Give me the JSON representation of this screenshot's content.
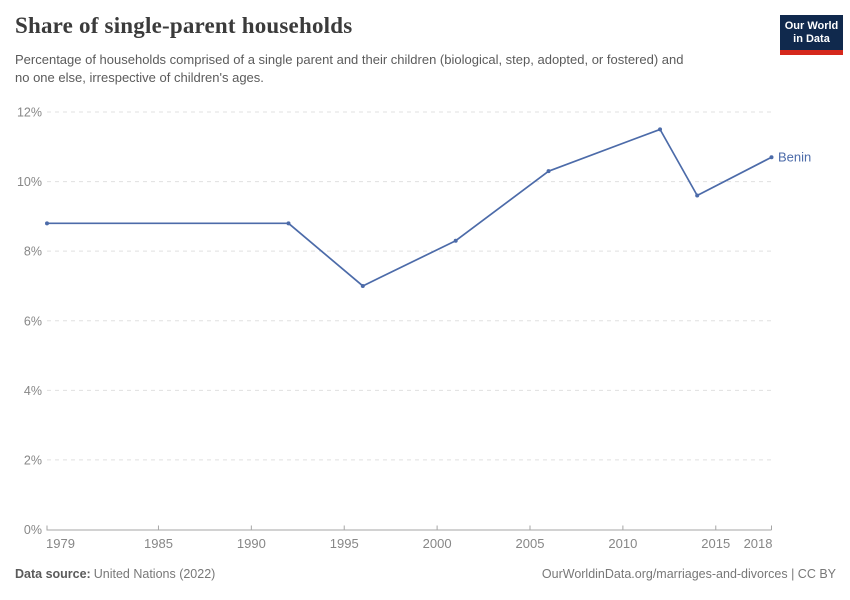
{
  "header": {
    "title": "Share of single-parent households",
    "subtitle": "Percentage of households comprised of a single parent and their children (biological, step, adopted, or fostered) and no one else, irrespective of children's ages.",
    "logo": {
      "line1": "Our World",
      "line2": "in Data"
    }
  },
  "chart_data": {
    "type": "line",
    "title": "Share of single-parent households",
    "series": [
      {
        "name": "Benin",
        "end_label": "Benin",
        "color": "#4c6ba9",
        "x": [
          1979,
          1992,
          1996,
          2001,
          2006,
          2012,
          2014,
          2018
        ],
        "values": [
          8.8,
          8.8,
          7.0,
          8.3,
          10.3,
          11.5,
          9.6,
          10.7
        ]
      }
    ],
    "xlabel": "",
    "ylabel": "",
    "xlim": [
      1979,
      2018
    ],
    "ylim": [
      0,
      12
    ],
    "x_ticks": [
      1979,
      1985,
      1990,
      1995,
      2000,
      2005,
      2010,
      2015,
      2018
    ],
    "x_tick_labels": [
      "1979",
      "1985",
      "1990",
      "1995",
      "2000",
      "2005",
      "2010",
      "2015",
      "2018"
    ],
    "y_ticks": [
      0,
      2,
      4,
      6,
      8,
      10,
      12
    ],
    "y_tick_labels": [
      "0%",
      "2%",
      "4%",
      "6%",
      "8%",
      "10%",
      "12%"
    ],
    "grid": "horizontal-dashed",
    "legend_position": "line-end"
  },
  "footer": {
    "source_label": "Data source:",
    "source_value": "United Nations (2022)",
    "credit": "OurWorldinData.org/marriages-and-divorces | CC BY"
  },
  "colors": {
    "line": "#4c6ba9",
    "grid": "#e0e0e0",
    "axis": "#a6a6a6",
    "tick_label": "#878787",
    "title": "#3b3b3b",
    "subtitle": "#5b5b5b",
    "footer_text": "#787878",
    "logo_bg": "#10294d",
    "logo_accent": "#d5281c"
  }
}
